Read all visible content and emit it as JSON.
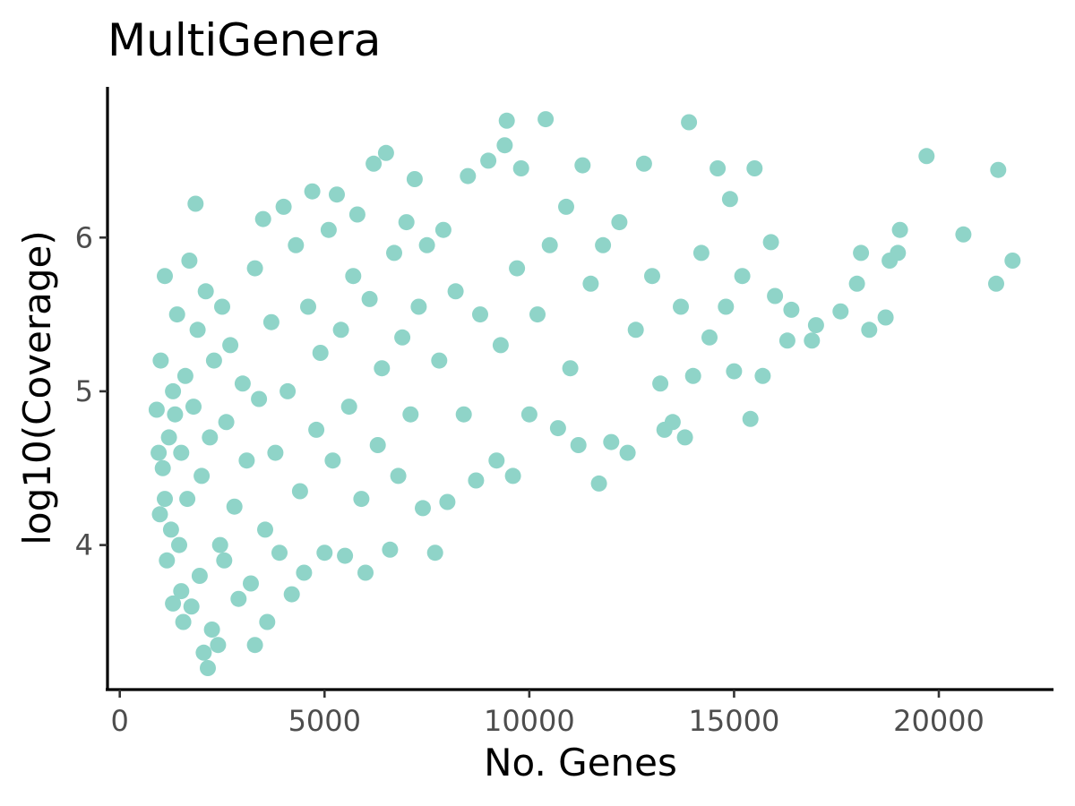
{
  "chart_data": {
    "type": "scatter",
    "title": "MultiGenera",
    "xlabel": "No. Genes",
    "ylabel": "log10(Coverage)",
    "xlim": [
      -300,
      22800
    ],
    "ylim": [
      3.06,
      6.98
    ],
    "x_ticks": [
      0,
      5000,
      10000,
      15000,
      20000
    ],
    "x_tick_labels": [
      "0",
      "5000",
      "10000",
      "15000",
      "20000"
    ],
    "y_ticks": [
      4,
      5,
      6
    ],
    "y_tick_labels": [
      "4",
      "5",
      "6"
    ],
    "grid": false,
    "legend": "none",
    "point_color": "#8fd4c8",
    "series": [
      {
        "points": [
          [
            900,
            4.88
          ],
          [
            950,
            4.6
          ],
          [
            980,
            4.2
          ],
          [
            1000,
            5.2
          ],
          [
            1050,
            4.5
          ],
          [
            1100,
            4.3
          ],
          [
            1100,
            5.75
          ],
          [
            1150,
            3.9
          ],
          [
            1200,
            4.7
          ],
          [
            1250,
            4.1
          ],
          [
            1300,
            5.0
          ],
          [
            1300,
            3.62
          ],
          [
            1350,
            4.85
          ],
          [
            1400,
            5.5
          ],
          [
            1450,
            4.0
          ],
          [
            1500,
            3.7
          ],
          [
            1500,
            4.6
          ],
          [
            1550,
            3.5
          ],
          [
            1600,
            5.1
          ],
          [
            1650,
            4.3
          ],
          [
            1700,
            5.85
          ],
          [
            1750,
            3.6
          ],
          [
            1800,
            4.9
          ],
          [
            1850,
            6.22
          ],
          [
            1900,
            5.4
          ],
          [
            1950,
            3.8
          ],
          [
            2000,
            4.45
          ],
          [
            2050,
            3.3
          ],
          [
            2100,
            5.65
          ],
          [
            2150,
            3.2
          ],
          [
            2200,
            4.7
          ],
          [
            2250,
            3.45
          ],
          [
            2300,
            5.2
          ],
          [
            2400,
            3.35
          ],
          [
            2450,
            4.0
          ],
          [
            2500,
            5.55
          ],
          [
            2550,
            3.9
          ],
          [
            2600,
            4.8
          ],
          [
            2700,
            5.3
          ],
          [
            2800,
            4.25
          ],
          [
            2900,
            3.65
          ],
          [
            3000,
            5.05
          ],
          [
            3100,
            4.55
          ],
          [
            3200,
            3.75
          ],
          [
            3300,
            5.8
          ],
          [
            3300,
            3.35
          ],
          [
            3400,
            4.95
          ],
          [
            3500,
            6.12
          ],
          [
            3550,
            4.1
          ],
          [
            3600,
            3.5
          ],
          [
            3700,
            5.45
          ],
          [
            3800,
            4.6
          ],
          [
            3900,
            3.95
          ],
          [
            4000,
            6.2
          ],
          [
            4100,
            5.0
          ],
          [
            4200,
            3.68
          ],
          [
            4300,
            5.95
          ],
          [
            4400,
            4.35
          ],
          [
            4500,
            3.82
          ],
          [
            4600,
            5.55
          ],
          [
            4700,
            6.3
          ],
          [
            4800,
            4.75
          ],
          [
            4900,
            5.25
          ],
          [
            5000,
            3.95
          ],
          [
            5100,
            6.05
          ],
          [
            5200,
            4.55
          ],
          [
            5300,
            6.28
          ],
          [
            5400,
            5.4
          ],
          [
            5500,
            3.93
          ],
          [
            5600,
            4.9
          ],
          [
            5700,
            5.75
          ],
          [
            5800,
            6.15
          ],
          [
            5900,
            4.3
          ],
          [
            6000,
            3.82
          ],
          [
            6100,
            5.6
          ],
          [
            6200,
            6.48
          ],
          [
            6300,
            4.65
          ],
          [
            6400,
            5.15
          ],
          [
            6500,
            6.55
          ],
          [
            6600,
            3.97
          ],
          [
            6700,
            5.9
          ],
          [
            6800,
            4.45
          ],
          [
            6900,
            5.35
          ],
          [
            7000,
            6.1
          ],
          [
            7100,
            4.85
          ],
          [
            7200,
            6.38
          ],
          [
            7300,
            5.55
          ],
          [
            7400,
            4.24
          ],
          [
            7500,
            5.95
          ],
          [
            7700,
            3.95
          ],
          [
            7800,
            5.2
          ],
          [
            7900,
            6.05
          ],
          [
            8000,
            4.28
          ],
          [
            8200,
            5.65
          ],
          [
            8400,
            4.85
          ],
          [
            8500,
            6.4
          ],
          [
            8700,
            4.42
          ],
          [
            8800,
            5.5
          ],
          [
            9000,
            6.5
          ],
          [
            9200,
            4.55
          ],
          [
            9300,
            5.3
          ],
          [
            9400,
            6.6
          ],
          [
            9450,
            6.76
          ],
          [
            9600,
            4.45
          ],
          [
            9700,
            5.8
          ],
          [
            9800,
            6.45
          ],
          [
            10000,
            4.85
          ],
          [
            10200,
            5.5
          ],
          [
            10400,
            6.77
          ],
          [
            10500,
            5.95
          ],
          [
            10700,
            4.76
          ],
          [
            10900,
            6.2
          ],
          [
            11000,
            5.15
          ],
          [
            11200,
            4.65
          ],
          [
            11300,
            6.47
          ],
          [
            11500,
            5.7
          ],
          [
            11700,
            4.4
          ],
          [
            11800,
            5.95
          ],
          [
            12000,
            4.67
          ],
          [
            12200,
            6.1
          ],
          [
            12400,
            4.6
          ],
          [
            12600,
            5.4
          ],
          [
            12800,
            6.48
          ],
          [
            13000,
            5.75
          ],
          [
            13200,
            5.05
          ],
          [
            13300,
            4.75
          ],
          [
            13500,
            4.8
          ],
          [
            13700,
            5.55
          ],
          [
            13800,
            4.7
          ],
          [
            13900,
            6.75
          ],
          [
            14000,
            5.1
          ],
          [
            14200,
            5.9
          ],
          [
            14400,
            5.35
          ],
          [
            14600,
            6.45
          ],
          [
            14800,
            5.55
          ],
          [
            14900,
            6.25
          ],
          [
            15000,
            5.13
          ],
          [
            15200,
            5.75
          ],
          [
            15400,
            4.82
          ],
          [
            15500,
            6.45
          ],
          [
            15700,
            5.1
          ],
          [
            15900,
            5.97
          ],
          [
            16000,
            5.62
          ],
          [
            16300,
            5.33
          ],
          [
            16400,
            5.53
          ],
          [
            16900,
            5.33
          ],
          [
            17000,
            5.43
          ],
          [
            17600,
            5.52
          ],
          [
            18000,
            5.7
          ],
          [
            18100,
            5.9
          ],
          [
            18300,
            5.4
          ],
          [
            18700,
            5.48
          ],
          [
            18800,
            5.85
          ],
          [
            19000,
            5.9
          ],
          [
            19050,
            6.05
          ],
          [
            19700,
            6.53
          ],
          [
            20600,
            6.02
          ],
          [
            21400,
            5.7
          ],
          [
            21450,
            6.44
          ],
          [
            21800,
            5.85
          ]
        ]
      }
    ]
  }
}
